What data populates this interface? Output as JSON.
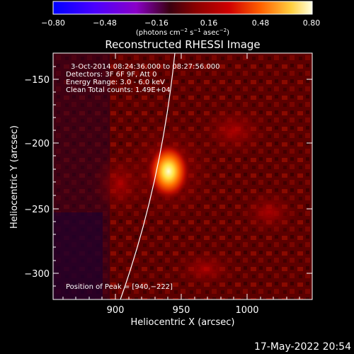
{
  "colorbar": {
    "ticks": [
      "−0.80",
      "−0.48",
      "−0.16",
      "0.16",
      "0.48",
      "0.80"
    ],
    "units_prefix": "(photons cm",
    "units_exp1": "−2",
    "units_mid": " s",
    "units_exp2": "−1",
    "units_mid2": " asec",
    "units_exp3": "−2",
    "units_suffix": ")"
  },
  "title": "Reconstructed RHESSI Image",
  "info": {
    "time_range": "3-Oct-2014 08:24:36.000 to 08:27:56.000",
    "detectors": "Detectors: 3F 6F 9F, Att 0",
    "energy": "Energy Range: 3.0 - 6.0 keV",
    "method": "Clean     Total counts: 1.49E+04"
  },
  "peak_text": "Position of Peak = [940,−222]",
  "axes": {
    "xlabel": "Heliocentric X (arcsec)",
    "ylabel": "Heliocentric Y (arcsec)",
    "x_ticks": [
      "900",
      "950",
      "1000"
    ],
    "y_ticks": [
      "−150",
      "−200",
      "−250",
      "−300"
    ]
  },
  "footer_date": "17-May-2022 20:54",
  "colors": {
    "background": "#000000",
    "flare_core": "#ffffc0",
    "map_base": "#5a0000"
  }
}
